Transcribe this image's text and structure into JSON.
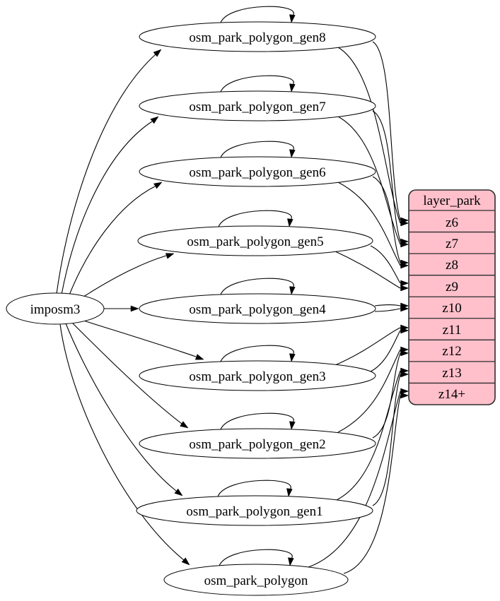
{
  "diagram": {
    "source": {
      "label": "imposm3"
    },
    "tables": [
      {
        "label": "osm_park_polygon_gen8",
        "used_for_zoom": "z6"
      },
      {
        "label": "osm_park_polygon_gen7",
        "used_for_zoom": "z7"
      },
      {
        "label": "osm_park_polygon_gen6",
        "used_for_zoom": "z8"
      },
      {
        "label": "osm_park_polygon_gen5",
        "used_for_zoom": "z9"
      },
      {
        "label": "osm_park_polygon_gen4",
        "used_for_zoom": "z10"
      },
      {
        "label": "osm_park_polygon_gen3",
        "used_for_zoom": "z11"
      },
      {
        "label": "osm_park_polygon_gen2",
        "used_for_zoom": "z12"
      },
      {
        "label": "osm_park_polygon_gen1",
        "used_for_zoom": "z13"
      },
      {
        "label": "osm_park_polygon",
        "used_for_zoom": "z14+"
      }
    ],
    "layer": {
      "title": "layer_park",
      "rows": [
        "z6",
        "z7",
        "z8",
        "z9",
        "z10",
        "z11",
        "z12",
        "z13",
        "z14+"
      ]
    },
    "colors": {
      "layer_fill": "#ffc0cb",
      "node_fill": "#ffffff",
      "edge": "#000000",
      "layer_border": "#2d2d2d",
      "text": "#000000"
    }
  }
}
